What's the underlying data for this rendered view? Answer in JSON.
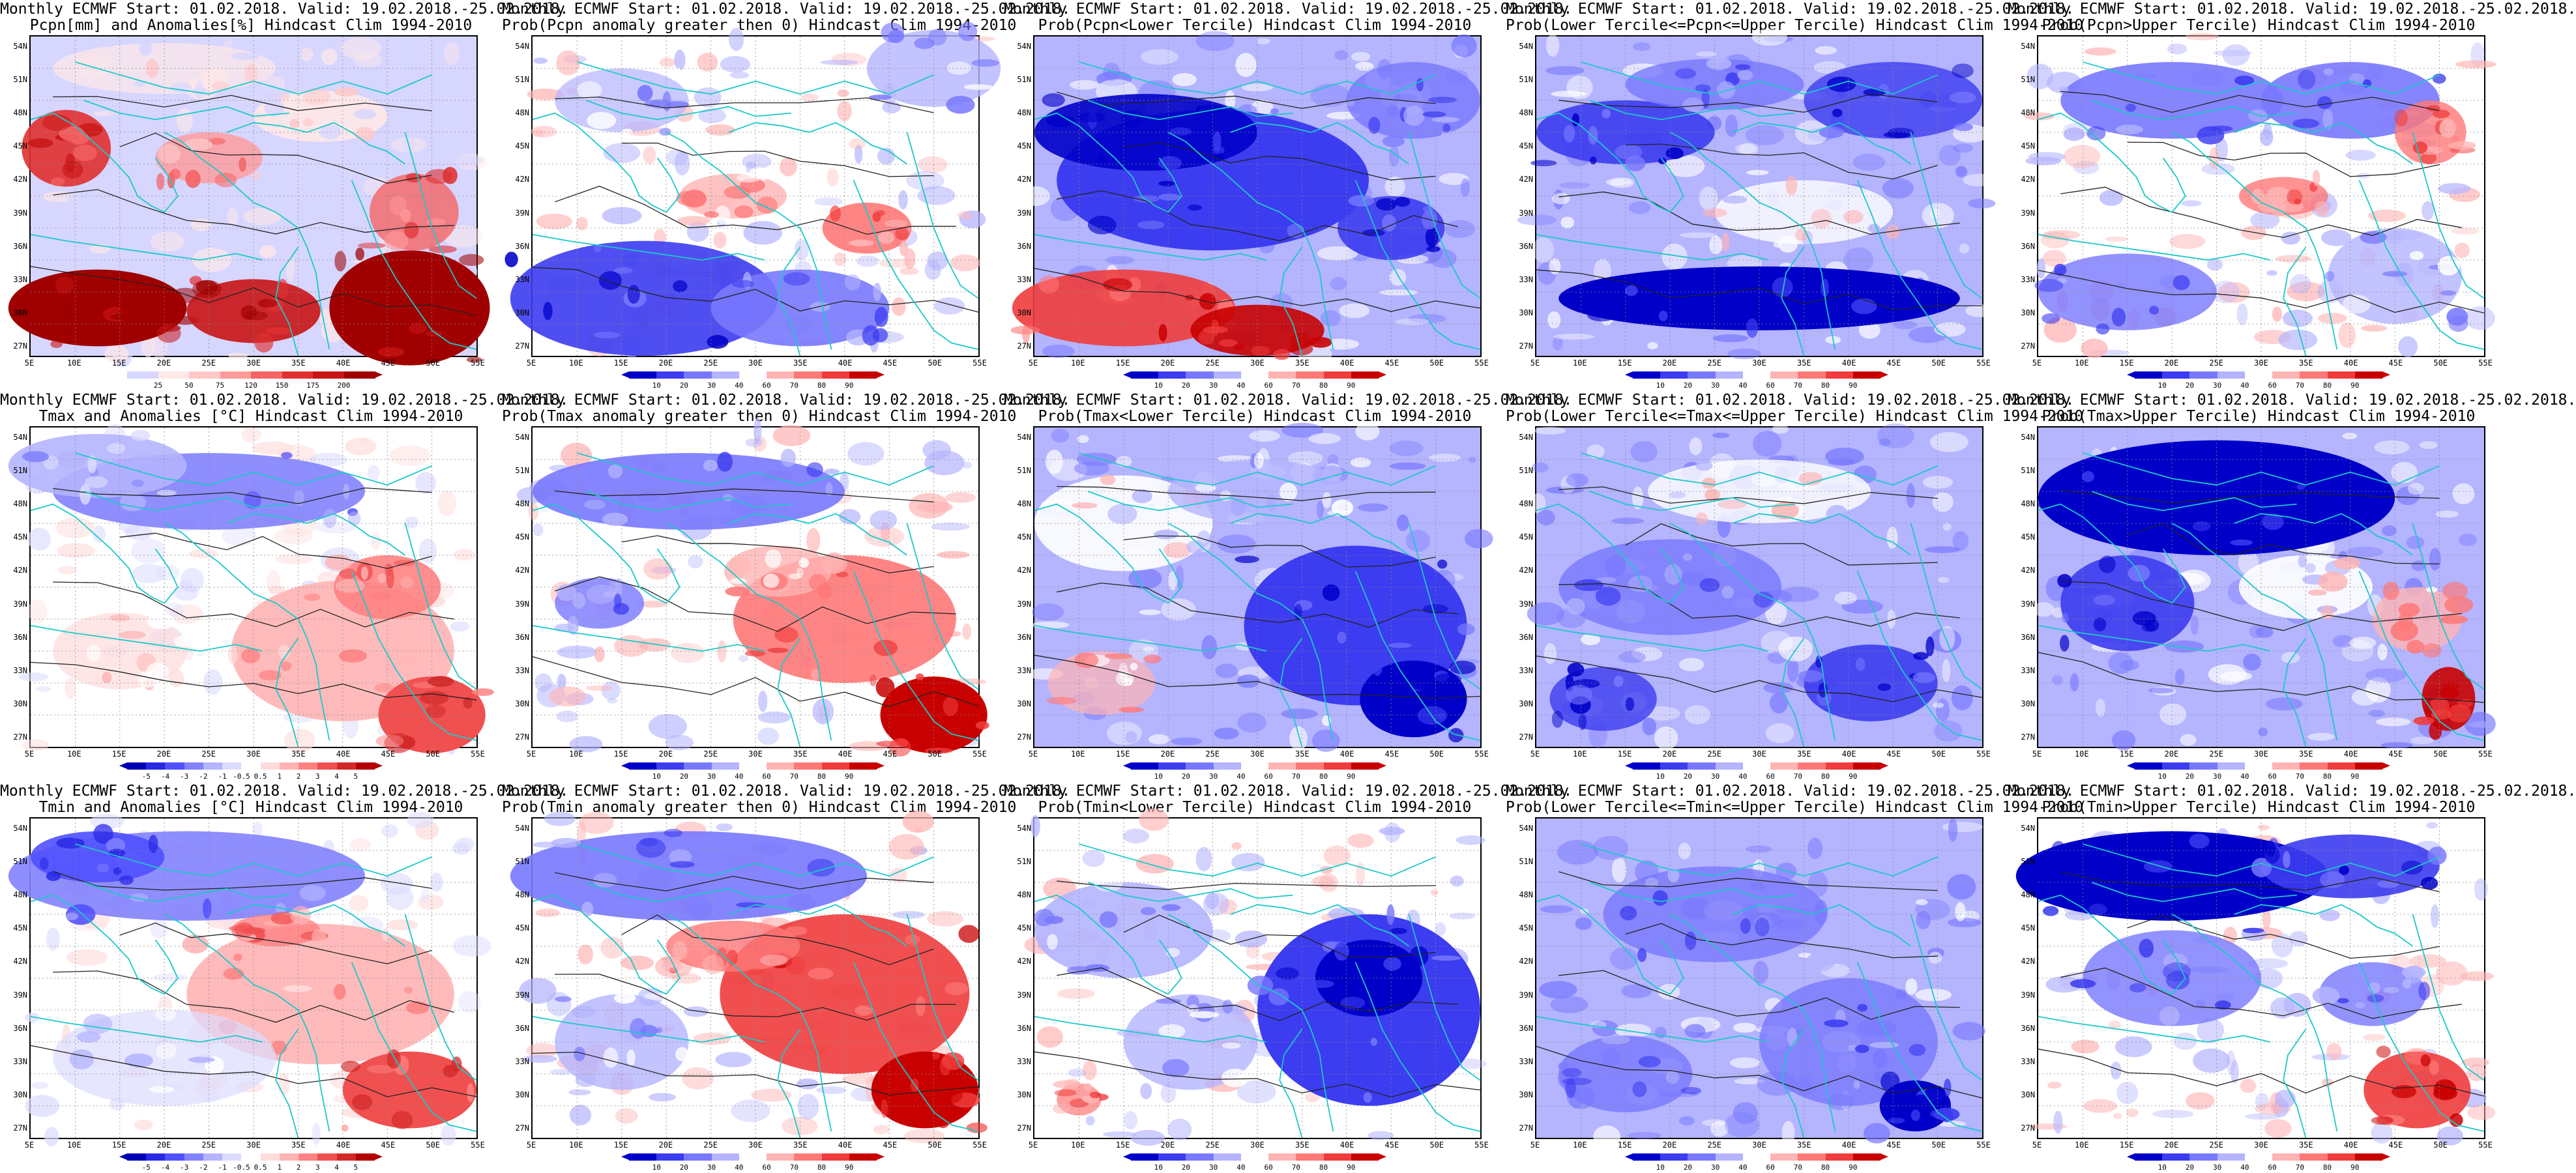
{
  "lat_labels": [
    "54N",
    "51N",
    "48N",
    "45N",
    "42N",
    "39N",
    "36N",
    "33N",
    "30N",
    "27N"
  ],
  "lon_labels": [
    "5E",
    "10E",
    "15E",
    "20E",
    "25E",
    "30E",
    "35E",
    "40E",
    "45E",
    "50E",
    "55E"
  ],
  "colorbars": {
    "precip": {
      "ticks": [
        "25",
        "50",
        "75",
        "120",
        "150",
        "175",
        "200"
      ],
      "colors": [
        "#d6d6ff",
        "#ffe8e8",
        "#ffc8c8",
        "#ff9a9a",
        "#f56464",
        "#e03030",
        "#c81414",
        "#a00000"
      ],
      "end_left": "",
      "end_right": "#a00000"
    },
    "prob": {
      "ticks": [
        "10",
        "20",
        "30",
        "40",
        "60",
        "70",
        "80",
        "90"
      ],
      "colors": [
        "#0000c8",
        "#3c3cf0",
        "#7878ff",
        "#b4b4ff",
        "#ffffff",
        "#ffb4b4",
        "#ff7878",
        "#f03c3c",
        "#c80000"
      ],
      "end_left": "#0000c8",
      "end_right": "#c80000"
    },
    "anom": {
      "ticks": [
        "-5",
        "-4",
        "-3",
        "-2",
        "-1",
        "-0.5",
        "0.5",
        "1",
        "2",
        "3",
        "4",
        "5"
      ],
      "colors": [
        "#0000b4",
        "#2828e6",
        "#5050ff",
        "#8282ff",
        "#b4b4ff",
        "#dcdcff",
        "#ffffff",
        "#ffdcdc",
        "#ffb4b4",
        "#ff8282",
        "#f05050",
        "#d22828",
        "#b40000"
      ],
      "end_left": "#0000b4",
      "end_right": "#b40000"
    }
  },
  "panels": [
    {
      "title1": "Monthly ECMWF Start: 01.02.2018. Valid: 19.02.2018.-25.02.2018.",
      "title2": "Pcpn[mm] and Anomalies[%] Hindcast Clim 1994-2010",
      "scale": "precip",
      "pattern": "precip"
    },
    {
      "title1": "Monthly ECMWF Start: 01.02.2018. Valid: 19.02.2018.-25.02.2018.",
      "title2": "Prob(Pcpn anomaly greater then 0) Hindcast Clim 1994-2010",
      "scale": "prob",
      "pattern": "p_gt0"
    },
    {
      "title1": "Monthly ECMWF Start: 01.02.2018. Valid: 19.02.2018.-25.02.2018.",
      "title2": "Prob(Pcpn<Lower Tercile) Hindcast Clim 1994-2010",
      "scale": "prob",
      "pattern": "p_low"
    },
    {
      "title1": "Monthly ECMWF Start: 01.02.2018. Valid: 19.02.2018.-25.02.2018.",
      "title2": "Prob(Lower Tercile<=Pcpn<=Upper Tercile) Hindcast Clim 1994-2010",
      "scale": "prob",
      "pattern": "p_mid"
    },
    {
      "title1": "Monthly ECMWF Start: 01.02.2018. Valid: 19.02.2018.-25.02.2018.",
      "title2": "Prob(Pcpn>Upper Tercile) Hindcast Clim 1994-2010",
      "scale": "prob",
      "pattern": "p_up"
    },
    {
      "title1": "Monthly ECMWF Start: 01.02.2018. Valid: 19.02.2018.-25.02.2018.",
      "title2": "Tmax and Anomalies [°C] Hindcast Clim 1994-2010",
      "scale": "anom",
      "pattern": "tmax"
    },
    {
      "title1": "Monthly ECMWF Start: 01.02.2018. Valid: 19.02.2018.-25.02.2018.",
      "title2": "Prob(Tmax anomaly greater then 0) Hindcast Clim 1994-2010",
      "scale": "prob",
      "pattern": "tmax_gt0"
    },
    {
      "title1": "Monthly ECMWF Start: 01.02.2018. Valid: 19.02.2018.-25.02.2018.",
      "title2": "Prob(Tmax<Lower Tercile) Hindcast Clim 1994-2010",
      "scale": "prob",
      "pattern": "tmax_low"
    },
    {
      "title1": "Monthly ECMWF Start: 01.02.2018. Valid: 19.02.2018.-25.02.2018.",
      "title2": "Prob(Lower Tercile<=Tmax<=Upper Tercile) Hindcast Clim 1994-2010",
      "scale": "prob",
      "pattern": "tmax_mid"
    },
    {
      "title1": "Monthly ECMWF Start: 01.02.2018. Valid: 19.02.2018.-25.02.2018.",
      "title2": "Prob(Tmax>Upper Tercile) Hindcast Clim 1994-2010",
      "scale": "prob",
      "pattern": "tmax_up"
    },
    {
      "title1": "Monthly ECMWF Start: 01.02.2018. Valid: 19.02.2018.-25.02.2018.",
      "title2": "Tmin and Anomalies [°C] Hindcast Clim 1994-2010",
      "scale": "anom",
      "pattern": "tmin"
    },
    {
      "title1": "Monthly ECMWF Start: 01.02.2018. Valid: 19.02.2018.-25.02.2018.",
      "title2": "Prob(Tmin anomaly greater then 0) Hindcast Clim 1994-2010",
      "scale": "prob",
      "pattern": "tmin_gt0"
    },
    {
      "title1": "Monthly ECMWF Start: 01.02.2018. Valid: 19.02.2018.-25.02.2018.",
      "title2": "Prob(Tmin<Lower Tercile) Hindcast Clim 1994-2010",
      "scale": "prob",
      "pattern": "tmin_low"
    },
    {
      "title1": "Monthly ECMWF Start: 01.02.2018. Valid: 19.02.2018.-25.02.2018.",
      "title2": "Prob(Lower Tercile<=Tmin<=Upper Tercile) Hindcast Clim 1994-2010",
      "scale": "prob",
      "pattern": "tmin_mid"
    },
    {
      "title1": "Monthly ECMWF Start: 01.02.2018. Valid: 19.02.2018.-25.02.2018.",
      "title2": "Prob(Tmin>Upper Tercile) Hindcast Clim 1994-2010",
      "scale": "prob",
      "pattern": "tmin_up"
    }
  ]
}
